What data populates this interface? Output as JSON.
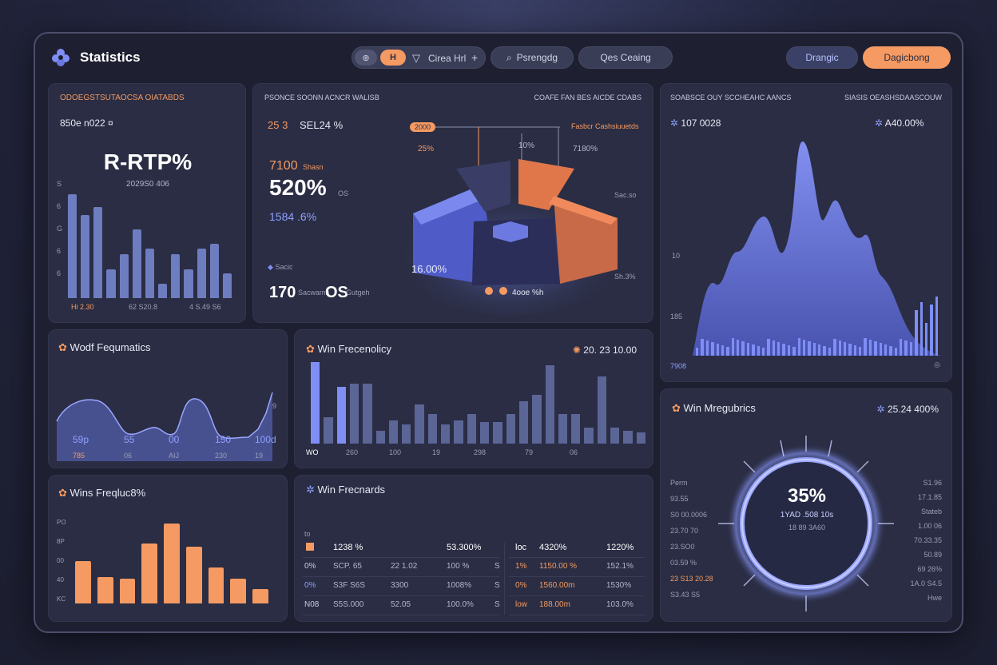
{
  "header": {
    "title": "Statistics",
    "toolbar": {
      "icon_btn_1": "⊕",
      "icon_btn_2": "H",
      "chart_label": "Cirea Hrl",
      "plus": "+",
      "search_label": "Psrengdg",
      "crafting_label": "Qes Ceaing"
    },
    "btn_secondary": "Drangic",
    "btn_primary": "Dagicbong"
  },
  "panel1": {
    "title": "ODOEGSTSUTAOCSA OIATABDS",
    "subtitle": "850e n022 ¤",
    "big": "R-RTP%",
    "sub": "2029S0 406",
    "yaxis": [
      "S",
      "6",
      "G",
      "6",
      "6"
    ],
    "footer": [
      "Hi 2.30",
      "62 S20.8",
      "4 S.49 S6"
    ],
    "bars": [
      100,
      80,
      88,
      28,
      42,
      66,
      48,
      14,
      42,
      28,
      48,
      52,
      24
    ]
  },
  "panel2": {
    "title_left": "PSONCE SOONN ACNCR WALISB",
    "title_right": "COAFE FAN BES AICDE CDABS",
    "stat1": "25 3",
    "stat1b": "SEL24 %",
    "stat2": "7100",
    "stat2_unit": "Shasn",
    "big": "520%",
    "big_note": "OS",
    "blue_stat": "1584 .6%",
    "marker_label": "Sacic",
    "bottom_left": "170",
    "bottom_left_note": "Sacwamh",
    "bottom_mid": "OS",
    "bottom_mid_note": "Gutgeh",
    "chip": "2000",
    "chip_line": "Fasbcr Cashsiuuetds",
    "lbl_25": "25%",
    "lbl_10": "10%",
    "lbl_7180": "7180%",
    "lbl_1600": "16.00%",
    "lbl_r1": "Sac.so",
    "lbl_r2": "Sh.3%",
    "legend": "4ooe %h"
  },
  "panel3": {
    "title_left": "SOABSCE OUY SCCHEAHC AANCS",
    "title_right": "SIASIS OEASHSDAASCOUW",
    "stat_left": "107 0028",
    "stat_right": "A40.00%",
    "y1": "10",
    "y2": "185",
    "footer_left": "7908",
    "footer_right": "◎"
  },
  "panel4": {
    "title": "Wodf Fequmatics",
    "labels": [
      "59p",
      "55",
      "00",
      "150",
      "100d"
    ],
    "sublabels": [
      "785",
      "06",
      "AIJ",
      "230",
      "19"
    ],
    "y_top": "9"
  },
  "panel5": {
    "title": "Win Frecenolicy",
    "stat": "20. 23 10.00",
    "footer": [
      "WO",
      "260",
      "100",
      "19",
      "298",
      "79",
      "06"
    ],
    "bars": [
      100,
      32,
      70,
      74,
      74,
      16,
      28,
      24,
      48,
      36,
      24,
      28,
      36,
      26,
      26,
      36,
      52,
      60,
      96,
      36,
      36,
      20,
      82,
      20,
      16,
      14
    ]
  },
  "panel6": {
    "title": "Win Mregubrics",
    "stat": "25.24 400%",
    "ring_big": "35%",
    "ring_mid": "1YAD .508 10s",
    "ring_small": "18 89 3A60",
    "left": [
      "Perm",
      "93.55",
      "S0 00.0006",
      "23.70 70",
      "23.SO0",
      "03.59 %",
      "23 S13 20.28",
      "S3.43 S5"
    ],
    "right": [
      "S1.96",
      "17.1.85",
      "Stateb",
      "1.00 06",
      "70.33.35",
      "50.89",
      "69 26%",
      "1A.0 S4.5",
      "Hwe"
    ]
  },
  "panel7": {
    "title": "Wins Freqluc8%",
    "yaxis": [
      "PO",
      "8P",
      "00",
      "40",
      "KC"
    ],
    "bars": [
      52,
      32,
      30,
      74,
      98,
      70,
      44,
      30,
      18
    ]
  },
  "panel8": {
    "title": "Win Frecnards",
    "small_label": "to",
    "rows": [
      [
        "",
        "1238 %",
        "",
        "53.300%"
      ],
      [
        "0%",
        "SCP. 65",
        "22 1.02",
        "100 %"
      ],
      [
        "0%",
        "S3F S6S",
        "3300",
        "1008%"
      ],
      [
        "N08",
        "S5S.000",
        "52.05",
        "100.0%"
      ]
    ],
    "rows_right": [
      [
        "loc",
        "4320%",
        "1220%"
      ],
      [
        "1%",
        "1150.00 %",
        "152.1%"
      ],
      [
        "0%",
        "1560.00m",
        "1530%"
      ],
      [
        "low",
        "188.00m",
        "103.0%"
      ]
    ],
    "sep_s": "S"
  },
  "colors": {
    "accent_orange": "#f59a62",
    "accent_blue": "#7e8ef5",
    "panel_bg": "#2a2d43",
    "frame_bg": "#1e2031"
  }
}
